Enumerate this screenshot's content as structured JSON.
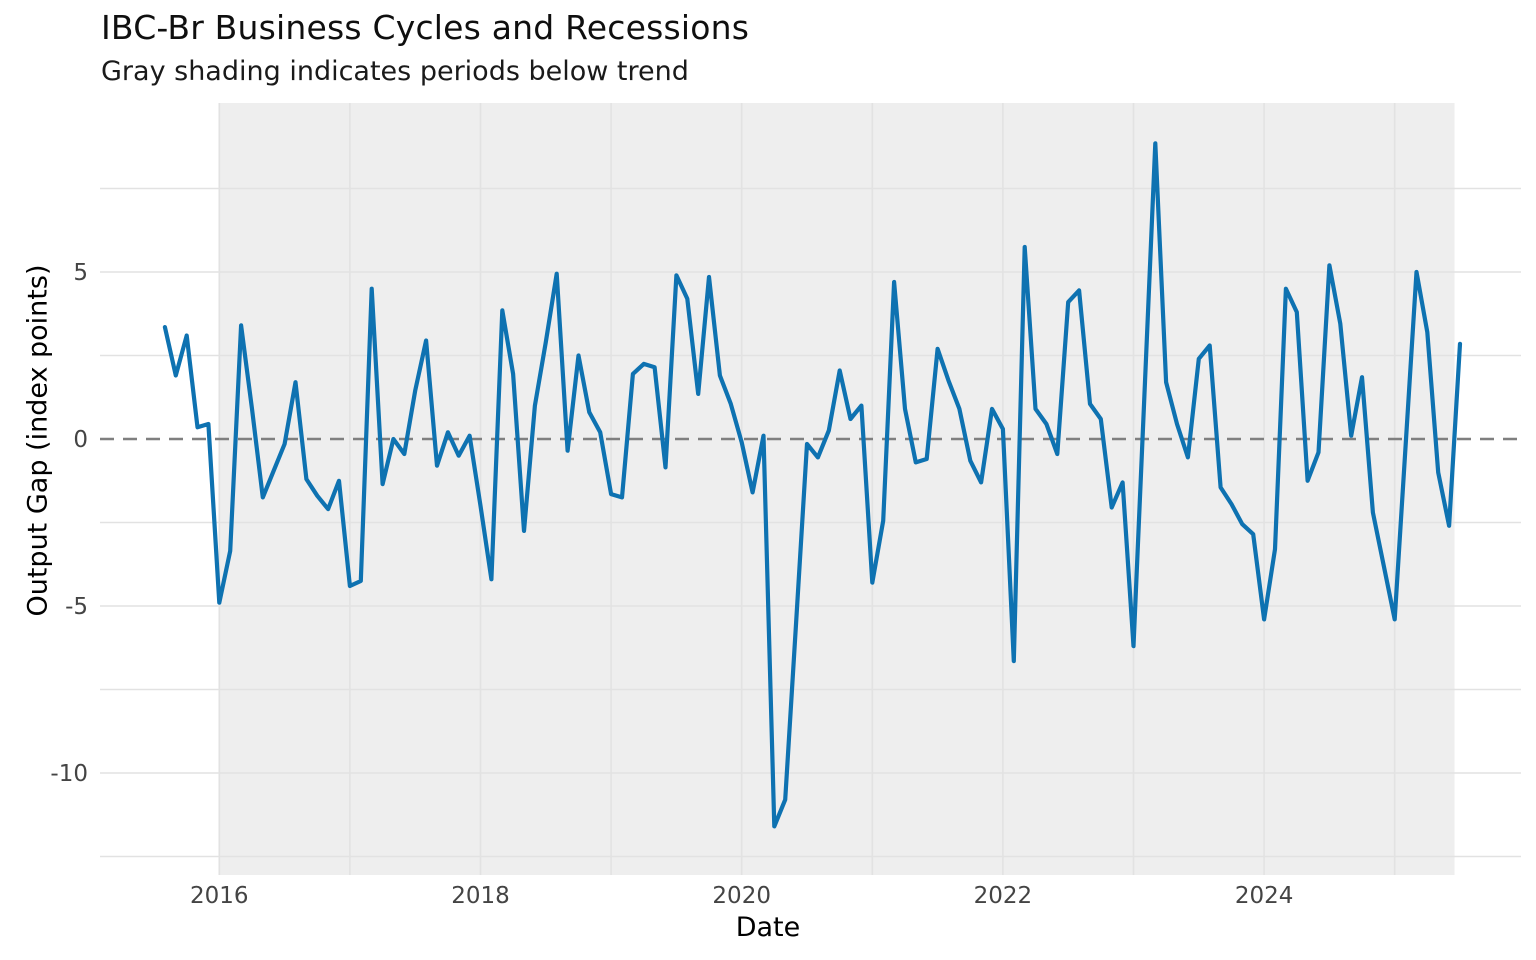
{
  "chart_data": {
    "type": "line",
    "title": "IBC-Br Business Cycles and Recessions",
    "subtitle": "Gray shading indicates periods below trend",
    "xlabel": "Date",
    "ylabel": "Output Gap (index points)",
    "x_ticks": [
      "2016",
      "2018",
      "2020",
      "2022",
      "2024"
    ],
    "x_gridline_years": [
      2016,
      2017,
      2018,
      2019,
      2020,
      2021,
      2022,
      2023,
      2024,
      2025
    ],
    "y_ticks": [
      5,
      0,
      -5,
      -10
    ],
    "y_minor_gridlines": [
      7.5,
      5,
      2.5,
      -2.5,
      -5,
      -7.5,
      -10,
      -12.5
    ],
    "ylim": [
      -13.0,
      10.0
    ],
    "zero_line": {
      "value": 0,
      "style": "dashed",
      "color": "#7f7f7f"
    },
    "below_trend_shading": {
      "from": "2016-01",
      "to": "2025-06",
      "color": "#eeeeee"
    },
    "grid": true,
    "legend": "none",
    "series": {
      "name": "output-gap",
      "frequency": "monthly",
      "start_month": "2015-08",
      "end_month": "2025-07",
      "color": "#0e72b1",
      "values": [
        3.35,
        1.9,
        3.1,
        0.35,
        0.45,
        -4.9,
        -3.35,
        3.4,
        0.9,
        -1.75,
        -0.95,
        -0.15,
        1.7,
        -1.2,
        -1.7,
        -2.1,
        -1.25,
        -4.4,
        -4.25,
        4.5,
        -1.35,
        0.0,
        -0.45,
        1.45,
        2.95,
        -0.8,
        0.2,
        -0.5,
        0.1,
        -2.0,
        -4.2,
        3.85,
        1.95,
        -2.75,
        1.0,
        2.9,
        4.95,
        -0.35,
        2.5,
        0.8,
        0.2,
        -1.65,
        -1.75,
        1.95,
        2.25,
        2.15,
        -0.85,
        4.9,
        4.2,
        1.35,
        4.85,
        1.9,
        1.05,
        -0.1,
        -1.6,
        0.1,
        -11.6,
        -10.8,
        -5.5,
        -0.15,
        -0.55,
        0.25,
        2.05,
        0.6,
        1.0,
        -4.3,
        -2.45,
        4.7,
        0.9,
        -0.7,
        -0.6,
        2.7,
        1.75,
        0.9,
        -0.65,
        -1.3,
        0.9,
        0.3,
        -6.65,
        5.75,
        0.9,
        0.45,
        -0.45,
        4.1,
        4.45,
        1.05,
        0.6,
        -2.05,
        -1.3,
        -6.2,
        1.3,
        8.85,
        1.7,
        0.45,
        -0.55,
        2.4,
        2.8,
        -1.45,
        -1.95,
        -2.55,
        -2.85,
        -5.4,
        -3.3,
        4.5,
        3.8,
        -1.25,
        -0.4,
        5.2,
        3.45,
        0.1,
        1.85,
        -2.2,
        -3.8,
        -5.4,
        -0.2,
        5.0,
        3.2,
        -1.0,
        -2.6,
        2.85
      ]
    }
  }
}
